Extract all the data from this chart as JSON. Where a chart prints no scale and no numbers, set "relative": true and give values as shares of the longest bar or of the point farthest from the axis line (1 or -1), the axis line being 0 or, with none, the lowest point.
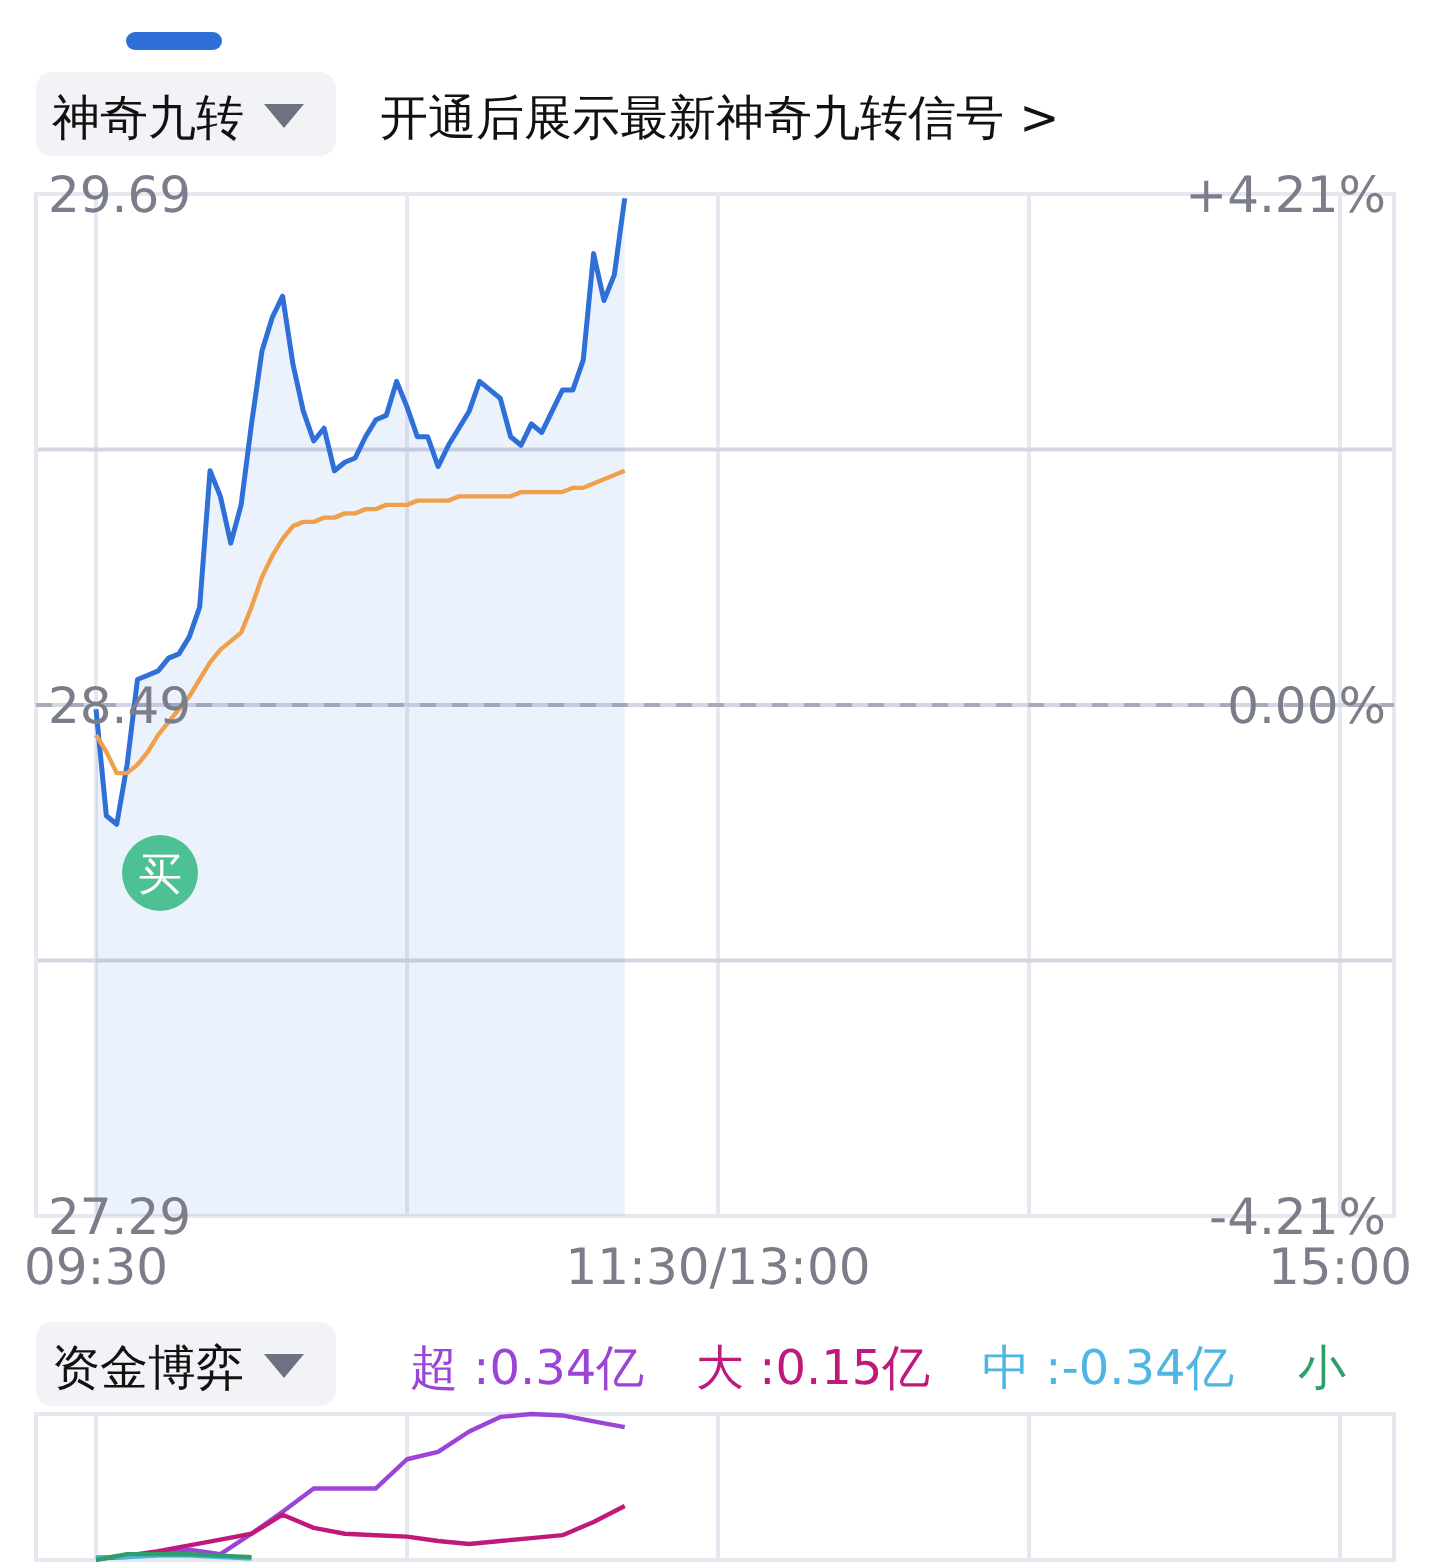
{
  "chart_data": [
    {
      "type": "line",
      "title": "神奇九转",
      "subtitle": "开通后展示最新神奇九转信号 >",
      "grid": true,
      "categories": [
        "09:30",
        null,
        null,
        null,
        null,
        null,
        null,
        null,
        null,
        null,
        null,
        null,
        null,
        null,
        null,
        null,
        null,
        null,
        null,
        null,
        null,
        null,
        null,
        null,
        null,
        null,
        null,
        null,
        null,
        null,
        null,
        null,
        null,
        null,
        null,
        null,
        null,
        null,
        null,
        null,
        null,
        null,
        null,
        null,
        null,
        null,
        null,
        null,
        null,
        null,
        null,
        null,
        null,
        null,
        null,
        null,
        null,
        null,
        null,
        null,
        "11:30/13:00",
        null,
        null,
        null,
        null,
        null,
        null,
        null,
        null,
        null,
        null,
        null,
        null,
        null,
        null,
        null,
        null,
        null,
        null,
        null,
        null,
        null,
        null,
        null,
        null,
        null,
        null,
        null,
        null,
        null,
        null,
        null,
        null,
        null,
        null,
        null,
        null,
        null,
        null,
        null,
        null,
        null,
        null,
        null,
        null,
        null,
        null,
        null,
        null,
        null,
        null,
        null,
        null,
        null,
        null,
        null,
        null,
        null,
        null,
        null,
        "15:00"
      ],
      "ylim": [
        27.29,
        29.69
      ],
      "yticks": [
        29.69,
        {
          "value": 29.09,
          "label": null
        },
        28.49,
        {
          "value": 27.89,
          "label": null
        },
        27.29
      ],
      "y2lim": [
        -4.21,
        4.21
      ],
      "y2ticks": [
        {
          "value": 4.21,
          "label": "+4.21%"
        },
        {
          "value": 0,
          "label": "0.00%"
        },
        {
          "value": -4.21,
          "label": "-4.21%"
        }
      ],
      "ref_lines": [
        {
          "axis": "y",
          "value": 28.49,
          "color": "#a9adbb",
          "line_style": "dashed"
        }
      ],
      "annotations": [
        "买"
      ],
      "series": [
        {
          "type": "area",
          "color": "#2f6fd8",
          "values": [
            28.48,
            28.23,
            28.21,
            28.35,
            28.55,
            28.56,
            28.57,
            28.6,
            28.61,
            28.65,
            28.72,
            29.04,
            28.98,
            28.87,
            28.96,
            29.15,
            29.32,
            29.4,
            29.45,
            29.29,
            29.18,
            29.11,
            29.14,
            29.04,
            29.06,
            29.07,
            29.12,
            29.16,
            29.17,
            29.25,
            29.19,
            29.12,
            29.12,
            29.05,
            29.1,
            29.14,
            29.18,
            29.25,
            29.23,
            29.21,
            29.12,
            29.1,
            29.15,
            29.13,
            29.18,
            29.23,
            29.23,
            29.3,
            29.55,
            29.44,
            29.5,
            29.68,
            null,
            null,
            null,
            null,
            null,
            null,
            null,
            null,
            null,
            null,
            null,
            null,
            null,
            null,
            null,
            null,
            null,
            null,
            null,
            null,
            null,
            null,
            null,
            null,
            null,
            null,
            null,
            null,
            null,
            null,
            null,
            null,
            null,
            null,
            null,
            null,
            null,
            null,
            null,
            null,
            null,
            null,
            null,
            null,
            null,
            null,
            null,
            null,
            null,
            null,
            null,
            null,
            null,
            null,
            null,
            null,
            null,
            null,
            null,
            null,
            null,
            null,
            null,
            null,
            null,
            null,
            null,
            null,
            null
          ]
        },
        {
          "type": "line",
          "color": "#f0a04b",
          "values": [
            28.42,
            28.38,
            28.33,
            28.33,
            28.35,
            28.38,
            28.42,
            28.45,
            28.48,
            28.51,
            28.55,
            28.59,
            28.62,
            28.64,
            28.66,
            28.72,
            28.79,
            28.84,
            28.88,
            28.91,
            28.92,
            28.92,
            28.93,
            28.93,
            28.94,
            28.94,
            28.95,
            28.95,
            28.96,
            28.96,
            28.96,
            28.97,
            28.97,
            28.97,
            28.97,
            28.98,
            28.98,
            28.98,
            28.98,
            28.98,
            28.98,
            28.99,
            28.99,
            28.99,
            28.99,
            28.99,
            29,
            29,
            29.01,
            29.02,
            29.03,
            29.04,
            null,
            null,
            null,
            null,
            null,
            null,
            null,
            null,
            null,
            null,
            null,
            null,
            null,
            null,
            null,
            null,
            null,
            null,
            null,
            null,
            null,
            null,
            null,
            null,
            null,
            null,
            null,
            null,
            null,
            null,
            null,
            null,
            null,
            null,
            null,
            null,
            null,
            null,
            null,
            null,
            null,
            null,
            null,
            null,
            null,
            null,
            null,
            null,
            null,
            null,
            null,
            null,
            null,
            null,
            null,
            null,
            null,
            null,
            null,
            null,
            null,
            null,
            null,
            null,
            null,
            null,
            null,
            null,
            null
          ]
        }
      ]
    },
    {
      "type": "line",
      "title": "资金博弈",
      "relative": true,
      "grid": "x",
      "legend": "top",
      "categories": [
        null,
        null,
        null,
        null,
        null,
        null,
        null,
        null,
        null,
        null,
        null,
        null,
        null,
        null,
        null,
        null,
        null,
        null,
        null,
        null,
        null,
        null,
        null,
        null,
        null,
        null,
        null,
        null,
        null,
        null,
        null,
        null,
        null,
        null,
        null,
        null,
        null,
        null,
        null,
        null,
        null
      ],
      "series": [
        {
          "name": "超 :0.34亿",
          "color": "#9b45d6",
          "values": [
            0.01,
            0.02,
            0.04,
            0.07,
            0.04,
            0.18,
            0.33,
            0.49,
            0.49,
            0.49,
            0.69,
            0.74,
            0.88,
            0.98,
            1,
            0.99,
            0.95,
            0.91,
            null,
            null,
            null,
            null,
            null,
            null,
            null,
            null,
            null,
            null,
            null,
            null,
            null,
            null,
            null,
            null,
            null,
            null,
            null,
            null,
            null,
            null,
            null
          ]
        },
        {
          "name": "大 :0.15亿",
          "color": "#c0197c",
          "values": [
            0.01,
            0.03,
            0.06,
            0.1,
            0.14,
            0.18,
            0.31,
            0.22,
            0.18,
            0.17,
            0.16,
            0.13,
            0.11,
            0.13,
            0.15,
            0.17,
            0.26,
            0.37,
            null,
            null,
            null,
            null,
            null,
            null,
            null,
            null,
            null,
            null,
            null,
            null,
            null,
            null,
            null,
            null,
            null,
            null,
            null,
            null,
            null,
            null,
            null
          ]
        },
        {
          "name": "中 :-0.34亿",
          "color": "#4fb6e3",
          "values": [
            0.02,
            0.02,
            0.03,
            0.03,
            0.02,
            0.01,
            null,
            null,
            null,
            null,
            null,
            null,
            null,
            null,
            null,
            null,
            null,
            null,
            null,
            null,
            null,
            null,
            null,
            null,
            null,
            null,
            null,
            null,
            null,
            null,
            null,
            null,
            null,
            null,
            null,
            null,
            null,
            null,
            null,
            null,
            null
          ]
        },
        {
          "name": "小",
          "color": "#2e9e6a",
          "values": [
            0,
            0.04,
            0.04,
            0.04,
            0.03,
            0.02,
            null,
            null,
            null,
            null,
            null,
            null,
            null,
            null,
            null,
            null,
            null,
            null,
            null,
            null,
            null,
            null,
            null,
            null,
            null,
            null,
            null,
            null,
            null,
            null,
            null,
            null,
            null,
            null,
            null,
            null,
            null,
            null,
            null,
            null,
            null
          ]
        }
      ]
    }
  ]
}
